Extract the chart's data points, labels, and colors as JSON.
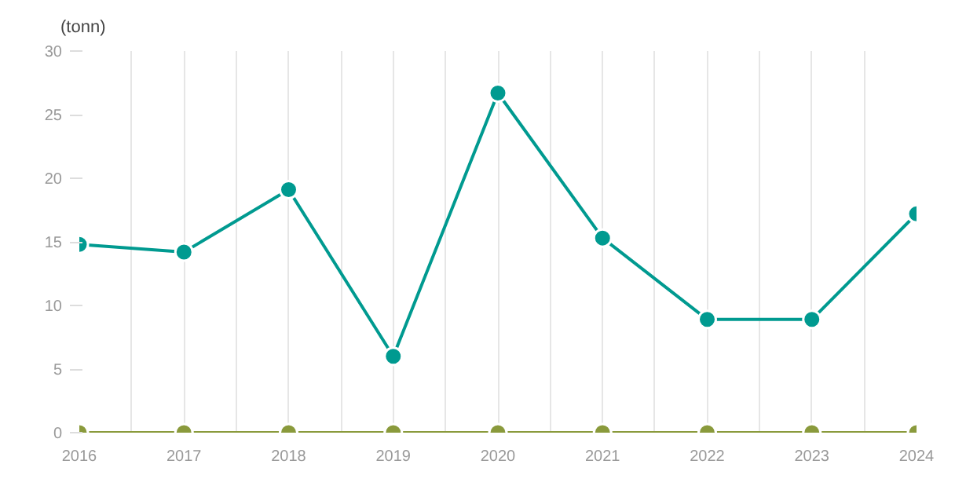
{
  "chart_data": {
    "type": "line",
    "ylabel": "(tonn)",
    "x": [
      2016,
      2017,
      2018,
      2019,
      2020,
      2021,
      2022,
      2023,
      2024
    ],
    "series": [
      {
        "color": "#009a90",
        "values": [
          14.8,
          14.2,
          19.1,
          6.0,
          26.7,
          15.3,
          8.9,
          8.9,
          17.2
        ]
      },
      {
        "color": "#8a9a3c",
        "values": [
          0,
          0,
          0,
          0,
          0,
          0,
          0,
          0,
          0
        ]
      }
    ],
    "xlim": [
      2016,
      2024
    ],
    "xticks": [
      2016,
      {
        "value": 2016.5,
        "label": null
      },
      2017,
      {
        "value": 2017.5,
        "label": null
      },
      2018,
      {
        "value": 2018.5,
        "label": null
      },
      2019,
      {
        "value": 2019.5,
        "label": null
      },
      2020,
      {
        "value": 2020.5,
        "label": null
      },
      2021,
      {
        "value": 2021.5,
        "label": null
      },
      2022,
      {
        "value": 2022.5,
        "label": null
      },
      2023,
      {
        "value": 2023.5,
        "label": null
      },
      2024
    ],
    "ylim": [
      0,
      30
    ],
    "yticks": [
      0,
      5,
      10,
      15,
      20,
      25,
      30
    ],
    "grid": "x",
    "marker": "circle",
    "line_style": "solid"
  }
}
